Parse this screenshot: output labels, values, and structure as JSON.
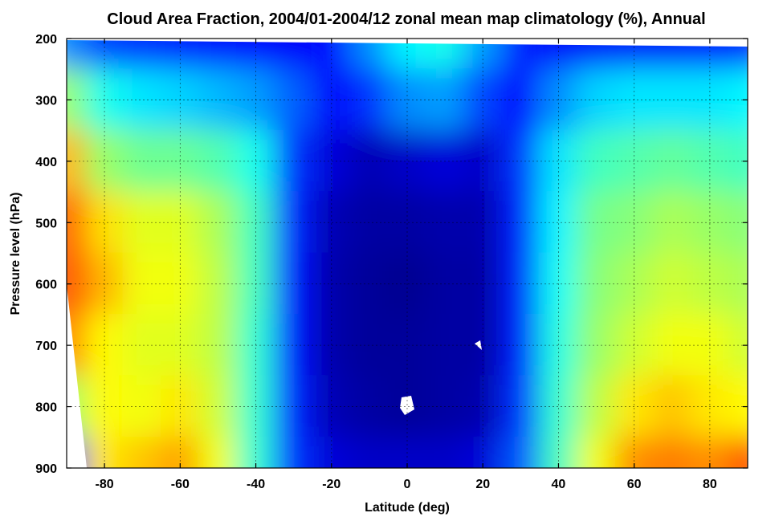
{
  "chart_data": {
    "type": "heatmap",
    "title": "Cloud Area Fraction, 2004/01-2004/12 zonal mean map climatology (%), Annual",
    "xlabel": "Latitude (deg)",
    "ylabel": "Pressure level (hPa)",
    "xlim": [
      -90,
      90
    ],
    "ylim": [
      900,
      200
    ],
    "x_ticks": [
      -80,
      -60,
      -40,
      -20,
      0,
      20,
      40,
      60,
      80
    ],
    "y_ticks": [
      200,
      300,
      400,
      500,
      600,
      700,
      800,
      900
    ],
    "grid": true,
    "colormap": [
      "#00007f",
      "#0000ff",
      "#0080ff",
      "#00ffff",
      "#80ff80",
      "#ffff00",
      "#ff8000",
      "#ff0000"
    ],
    "latitudes": [
      -90,
      -80,
      -70,
      -60,
      -50,
      -40,
      -30,
      -20,
      -10,
      0,
      10,
      20,
      30,
      40,
      50,
      60,
      70,
      80,
      90
    ],
    "pressure_levels": [
      200,
      300,
      400,
      500,
      600,
      700,
      800,
      900
    ],
    "values": [
      [
        0.3,
        0.22,
        0.2,
        0.18,
        0.16,
        0.15,
        0.14,
        0.16,
        0.3,
        0.42,
        0.45,
        0.32,
        0.18,
        0.14,
        0.14,
        0.14,
        0.14,
        0.15,
        0.16
      ],
      [
        0.6,
        0.45,
        0.4,
        0.38,
        0.35,
        0.32,
        0.25,
        0.14,
        0.2,
        0.3,
        0.32,
        0.22,
        0.15,
        0.3,
        0.38,
        0.4,
        0.4,
        0.4,
        0.42
      ],
      [
        0.8,
        0.6,
        0.55,
        0.55,
        0.52,
        0.45,
        0.2,
        0.1,
        0.06,
        0.08,
        0.1,
        0.08,
        0.2,
        0.4,
        0.5,
        0.52,
        0.54,
        0.52,
        0.5
      ],
      [
        0.9,
        0.75,
        0.68,
        0.68,
        0.62,
        0.5,
        0.18,
        0.06,
        0.04,
        0.04,
        0.05,
        0.05,
        0.18,
        0.42,
        0.56,
        0.58,
        0.62,
        0.6,
        0.58
      ],
      [
        0.92,
        0.8,
        0.7,
        0.7,
        0.64,
        0.5,
        0.17,
        0.05,
        0.03,
        0.02,
        0.04,
        0.04,
        0.18,
        0.44,
        0.58,
        0.62,
        0.66,
        0.64,
        0.62
      ],
      [
        0.85,
        0.72,
        0.68,
        0.68,
        0.64,
        0.48,
        0.17,
        0.05,
        0.03,
        0.03,
        0.04,
        0.04,
        0.18,
        0.46,
        0.6,
        0.66,
        0.7,
        0.7,
        0.66
      ],
      [
        0.6,
        0.72,
        0.7,
        0.74,
        0.66,
        0.48,
        0.18,
        0.06,
        0.04,
        0.03,
        0.04,
        0.05,
        0.2,
        0.48,
        0.64,
        0.74,
        0.78,
        0.74,
        0.72
      ],
      [
        0.2,
        0.74,
        0.78,
        0.82,
        0.7,
        0.48,
        0.2,
        0.1,
        0.08,
        0.08,
        0.08,
        0.1,
        0.24,
        0.5,
        0.7,
        0.84,
        0.86,
        0.84,
        0.9
      ]
    ]
  }
}
